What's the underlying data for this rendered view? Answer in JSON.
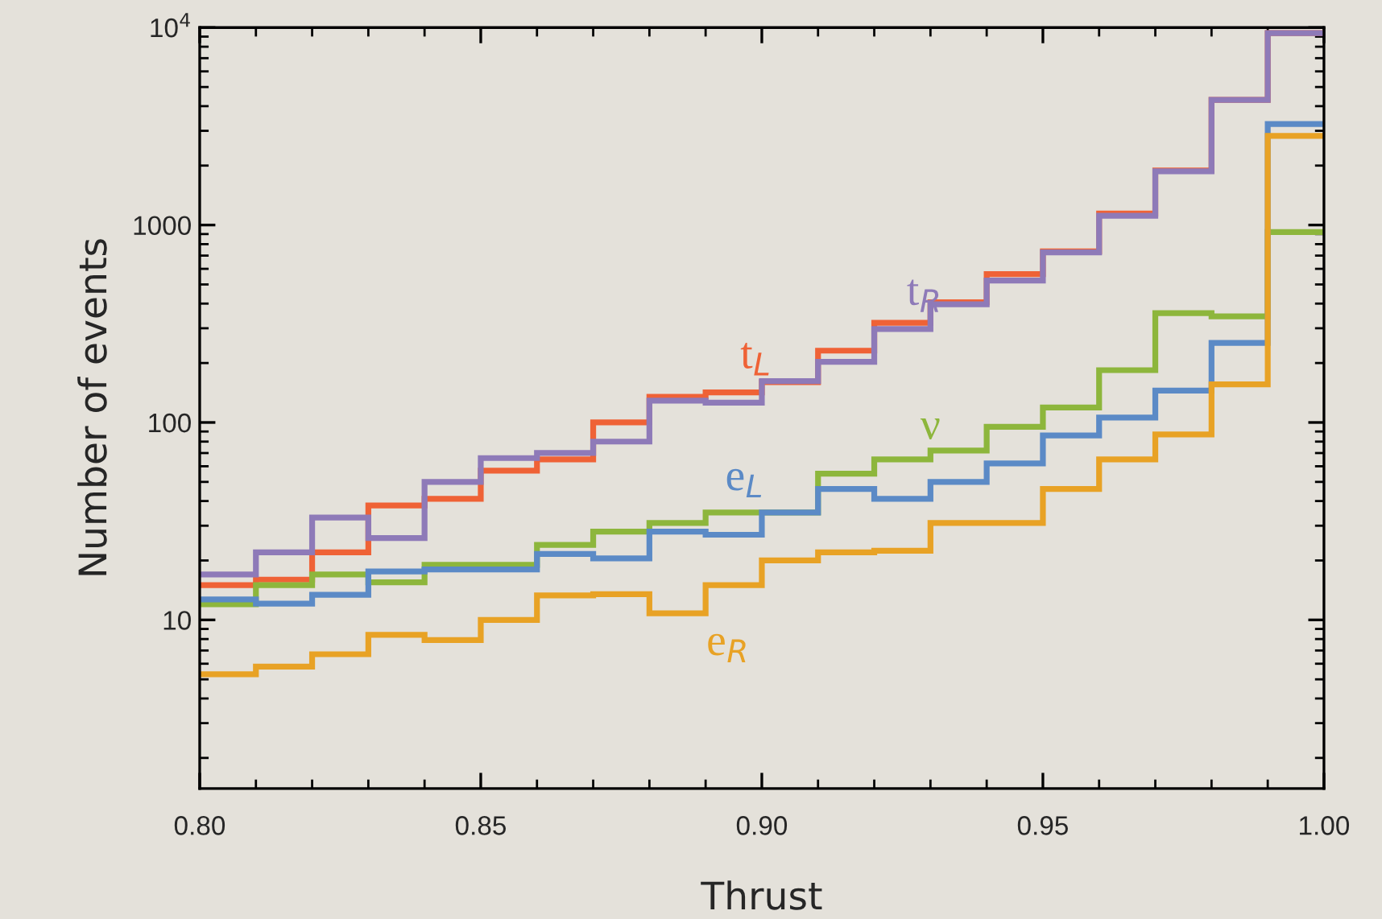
{
  "chart_data": {
    "type": "histogram",
    "xlabel": "Thrust",
    "ylabel": "Number of events",
    "log": "y",
    "grid": false,
    "legend": false,
    "bins": [
      0.8,
      0.81,
      0.82,
      0.83,
      0.84,
      0.85,
      0.86,
      0.87,
      0.88,
      0.89,
      0.9,
      0.91,
      0.92,
      0.93,
      0.94,
      0.95,
      0.96,
      0.97,
      0.98,
      0.99,
      1.0
    ],
    "xlim": [
      0.8,
      1.0
    ],
    "xticks": [
      {
        "value": 0.8,
        "label": "0.80"
      },
      {
        "value": 0.85,
        "label": "0.85"
      },
      {
        "value": 0.9,
        "label": "0.90"
      },
      {
        "value": 0.95,
        "label": "0.95"
      },
      {
        "value": 1.0,
        "label": "1.00"
      }
    ],
    "ylim": [
      1.4,
      10000
    ],
    "yticks": [
      10,
      100,
      1000,
      {
        "value": 10000,
        "label": "10$^{4}$"
      }
    ],
    "series": [
      {
        "name": "t$_{L}$",
        "color": "#ef6236",
        "values": [
          15,
          16,
          22,
          38,
          41,
          57,
          65,
          100,
          135,
          142,
          160,
          231,
          320,
          406,
          564,
          735,
          1143,
          1890,
          4300,
          9370
        ]
      },
      {
        "name": "t$_{R}$",
        "color": "#8e7ab8",
        "values": [
          17,
          22,
          33,
          26,
          50,
          66,
          70,
          80,
          129,
          126,
          162,
          203,
          297,
          397,
          523,
          727,
          1114,
          1870,
          4300,
          9370
        ]
      },
      {
        "name": "ν",
        "color": "#8db63c",
        "values": [
          12,
          15,
          17,
          15.5,
          19,
          19,
          24,
          28,
          31,
          35,
          35,
          55,
          65,
          72,
          95,
          119,
          184,
          358,
          345,
          922
        ]
      },
      {
        "name": "e$_{L}$",
        "color": "#5b8ac6",
        "values": [
          12.7,
          12.1,
          13.4,
          17.6,
          18,
          18,
          21.6,
          20.5,
          28,
          27,
          35,
          46,
          41,
          50,
          62,
          86,
          106,
          145,
          253,
          3250
        ]
      },
      {
        "name": "e$_{R}$",
        "color": "#e8a225",
        "values": [
          5.3,
          5.8,
          6.7,
          8.4,
          7.9,
          10,
          13.3,
          13.5,
          10.8,
          15,
          20,
          22,
          22.4,
          31,
          31,
          46,
          65,
          87,
          156,
          2830
        ]
      }
    ]
  }
}
